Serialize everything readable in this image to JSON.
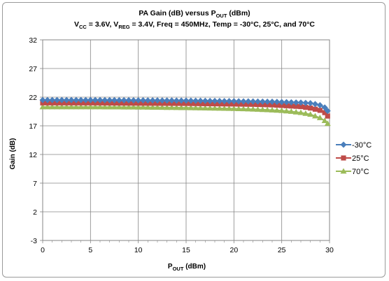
{
  "chart_data": {
    "type": "line",
    "title": "PA Gain (dB) versus P",
    "title_sub": "OUT",
    "title_unit": " (dBm)",
    "subtitle_parts": [
      {
        "t": "V",
        "sub": false
      },
      {
        "t": "CC",
        "sub": true
      },
      {
        "t": " = 3.6V, V",
        "sub": false
      },
      {
        "t": "REG",
        "sub": true
      },
      {
        "t": " = 3.4V, Freq = 450MHz, Temp = -30°C, 25°C, and 70°C",
        "sub": false
      }
    ],
    "xlabel": "P",
    "xlabel_sub": "OUT",
    "xlabel_unit": " (dBm)",
    "ylabel": "Gain (dB)",
    "xlim": [
      0,
      30
    ],
    "ylim": [
      -3,
      32
    ],
    "xticks": [
      "0",
      "5",
      "10",
      "15",
      "20",
      "25",
      "30"
    ],
    "yticks": [
      "-3",
      "2",
      "7",
      "12",
      "17",
      "22",
      "27",
      "32"
    ],
    "grid": true,
    "legend_position": "right",
    "x": [
      0,
      5,
      10,
      15,
      20,
      22,
      24,
      25,
      26,
      27,
      28,
      28.5,
      29,
      29.5,
      29.8
    ],
    "series": [
      {
        "name": "-30°C",
        "color": "#4a7ebb",
        "marker": "diamond",
        "values": [
          21.5,
          21.5,
          21.45,
          21.4,
          21.3,
          21.25,
          21.2,
          21.15,
          21.1,
          21.05,
          20.95,
          20.8,
          20.6,
          20.2,
          19.6
        ]
      },
      {
        "name": "25°C",
        "color": "#be4b48",
        "marker": "square",
        "values": [
          21.0,
          21.0,
          20.95,
          20.9,
          20.8,
          20.75,
          20.65,
          20.55,
          20.45,
          20.35,
          20.1,
          19.9,
          19.7,
          19.3,
          18.7
        ]
      },
      {
        "name": "70°C",
        "color": "#9bbb59",
        "marker": "triangle",
        "values": [
          20.3,
          20.3,
          20.25,
          20.15,
          20.0,
          19.9,
          19.75,
          19.65,
          19.5,
          19.3,
          19.0,
          18.7,
          18.4,
          17.9,
          17.4
        ]
      }
    ]
  }
}
